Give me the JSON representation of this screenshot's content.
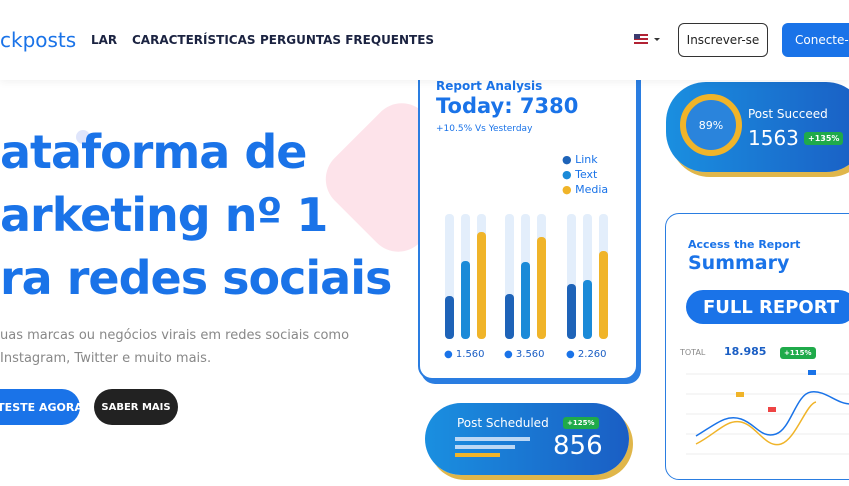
{
  "header": {
    "logo": "ckposts",
    "nav": [
      "LAR",
      "CARACTERÍSTICAS",
      "PERGUNTAS FREQUENTES"
    ],
    "signup": "Inscrever-se",
    "login": "Conecte-s"
  },
  "hero": {
    "title_lines": [
      "ataforma de",
      "arketing nº 1",
      "ra redes sociais"
    ],
    "subtitle_lines": [
      "uas marcas ou negócios virais em redes sociais como",
      "Instagram, Twitter e muito mais."
    ],
    "primary_button": "TESTE AGORA",
    "secondary_button": "SABER MAIS"
  },
  "report_card": {
    "title": "Report Analysis",
    "today": "Today: 7380",
    "change": "+10.5% Vs Yesterday",
    "legend": [
      "Link",
      "Text",
      "Media"
    ],
    "totals": [
      "1.560",
      "3.560",
      "2.260"
    ]
  },
  "succeed_card": {
    "percent": "89%",
    "title": "Post Succeed",
    "value": "1563",
    "badge": "+135%"
  },
  "summary_card": {
    "kicker": "Access the Report",
    "title": "Summary",
    "button": "FULL REPORT",
    "total_label": "TOTAL",
    "total": "18.985",
    "badge": "+115%"
  },
  "scheduled_card": {
    "title": "Post Scheduled",
    "value": "856",
    "badge": "+125%"
  }
}
